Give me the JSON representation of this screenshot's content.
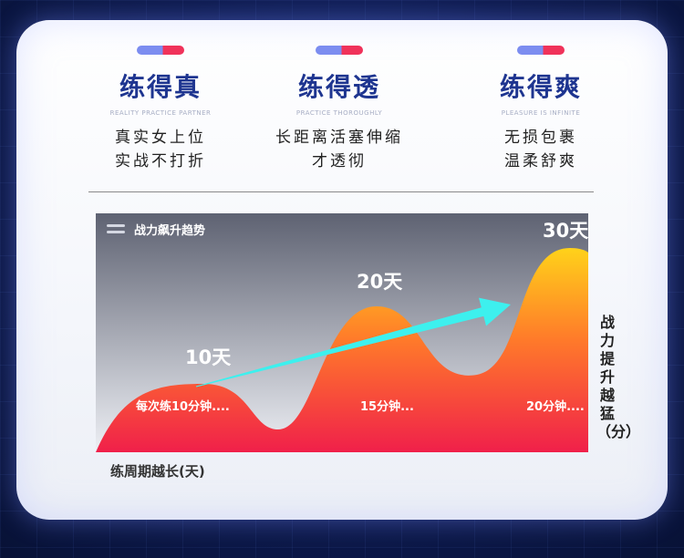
{
  "features": [
    {
      "title": "练得真",
      "subtitle": "REALITY PRACTICE PARTNER",
      "lines": [
        "真实女上位",
        "实战不打折"
      ]
    },
    {
      "title": "练得透",
      "subtitle": "PRACTICE THOROUGHLY",
      "lines": [
        "长距离活塞伸缩",
        "才透彻"
      ]
    },
    {
      "title": "练得爽",
      "subtitle": "PLEASURE IS INFINITE",
      "lines": [
        "无损包裹",
        "温柔舒爽"
      ]
    }
  ],
  "chart_data": {
    "type": "area",
    "title": "战力飙升趋势",
    "xlabel": "练周期越长(天)",
    "ylabel": "战力提升越猛（分）",
    "categories": [
      "10天",
      "20天",
      "30天"
    ],
    "values": [
      10,
      20,
      30
    ],
    "annotations": [
      "每次练10分钟....",
      "15分钟...",
      "20分钟...."
    ],
    "colors": {
      "top": "#ffd21a",
      "mid": "#ff7a2a",
      "bottom": "#f0204a",
      "arrow": "#3df0ee"
    }
  }
}
